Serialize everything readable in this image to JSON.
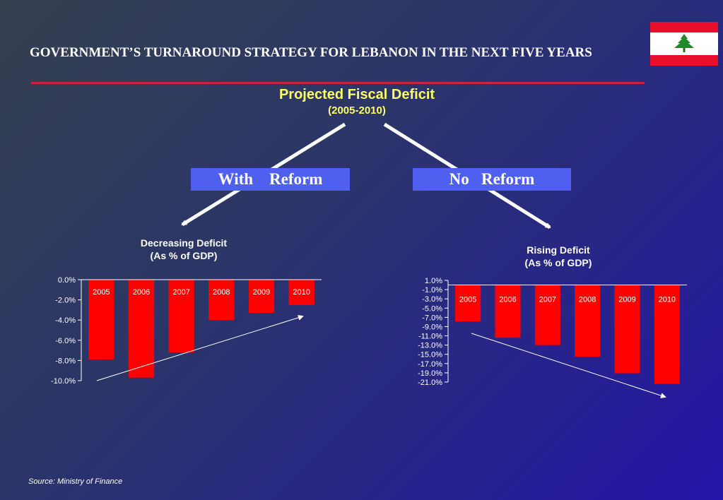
{
  "slide": {
    "title": "GOVERNMENT’S TURNAROUND STRATEGY FOR LEBANON IN THE NEXT FIVE YEARS",
    "center_title": "Projected Fiscal Deficit",
    "center_subtitle": "(2005-2010)",
    "with_reform": "With    Reform",
    "no_reform": "No   Reform",
    "source": "Source:  Ministry of Finance"
  },
  "colors": {
    "bar": "#ff0000",
    "title_rule": "#d02040",
    "box": "#4f5ff0",
    "flag_red": "#e8102a"
  },
  "icons": {
    "flag": "lebanon-flag-icon",
    "cedar": "cedar-tree-icon"
  },
  "chart_data": [
    {
      "type": "bar",
      "title": "Decreasing Deficit",
      "subtitle": "(As % of GDP)",
      "categories": [
        "2005",
        "2006",
        "2007",
        "2008",
        "2009",
        "2010"
      ],
      "values": [
        -7.9,
        -9.7,
        -7.2,
        -4.0,
        -3.3,
        -2.5
      ],
      "ylim": [
        -10,
        0
      ],
      "yticks": [
        0,
        -2,
        -4,
        -6,
        -8,
        -10
      ],
      "ytick_labels": [
        "0.0%",
        "-2.0%",
        "-4.0%",
        "-6.0%",
        "-8.0%",
        "-10.0%"
      ],
      "trend": "increasing",
      "grid": false
    },
    {
      "type": "bar",
      "title": "Rising Deficit",
      "subtitle": "(As % of GDP)",
      "categories": [
        "2005",
        "2006",
        "2007",
        "2008",
        "2009",
        "2010"
      ],
      "values": [
        -7.9,
        -11.4,
        -13.0,
        -15.5,
        -19.1,
        -21.4
      ],
      "ylim": [
        -21,
        1
      ],
      "yticks": [
        1,
        -1,
        -3,
        -5,
        -7,
        -9,
        -11,
        -13,
        -15,
        -17,
        -19,
        -21
      ],
      "ytick_labels": [
        "1.0%",
        "-1.0%",
        "-3.0%",
        "-5.0%",
        "-7.0%",
        "-9.0%",
        "-11.0%",
        "-13.0%",
        "-15.0%",
        "-17.0%",
        "-19.0%",
        "-21.0%"
      ],
      "trend": "decreasing",
      "grid": false
    }
  ]
}
